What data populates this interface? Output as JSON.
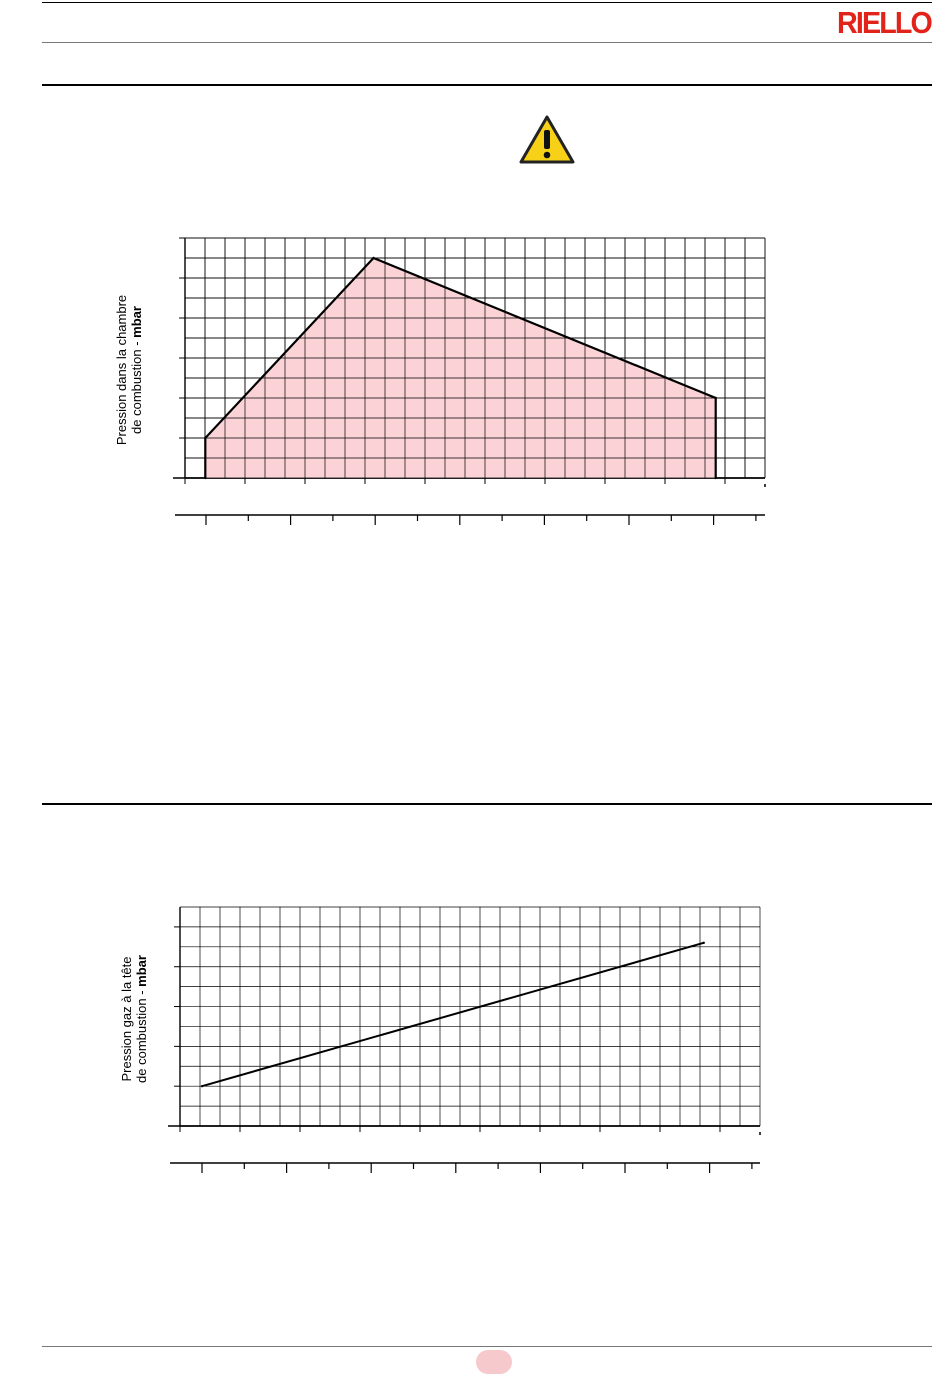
{
  "header": {
    "brand": "RIELLO",
    "brand_color": "#e2231a"
  },
  "warning_icon": {
    "name": "warning-triangle-icon",
    "fill": "#f7d117"
  },
  "chart_data": [
    {
      "type": "area",
      "ylabel_line1": "Pression dans la chambre",
      "ylabel_line2_prefix": "de combustion - ",
      "ylabel_unit": "mbar",
      "x": [
        0,
        0,
        0.29,
        0.88,
        0.88
      ],
      "y": [
        0,
        1,
        5.5,
        2,
        0
      ],
      "xlim": [
        -0.035,
        0.965
      ],
      "ylim": [
        0,
        6
      ],
      "fill_color": "#fbd3d6",
      "grid": true
    },
    {
      "type": "line",
      "ylabel_line1": "Pression gaz à la tête",
      "ylabel_line2_prefix": "de combustion - ",
      "ylabel_unit": "mbar",
      "x": [
        0,
        0.865
      ],
      "y": [
        1,
        4.6
      ],
      "xlim": [
        -0.038,
        0.962
      ],
      "ylim": [
        0,
        5.5
      ],
      "grid": true
    }
  ]
}
